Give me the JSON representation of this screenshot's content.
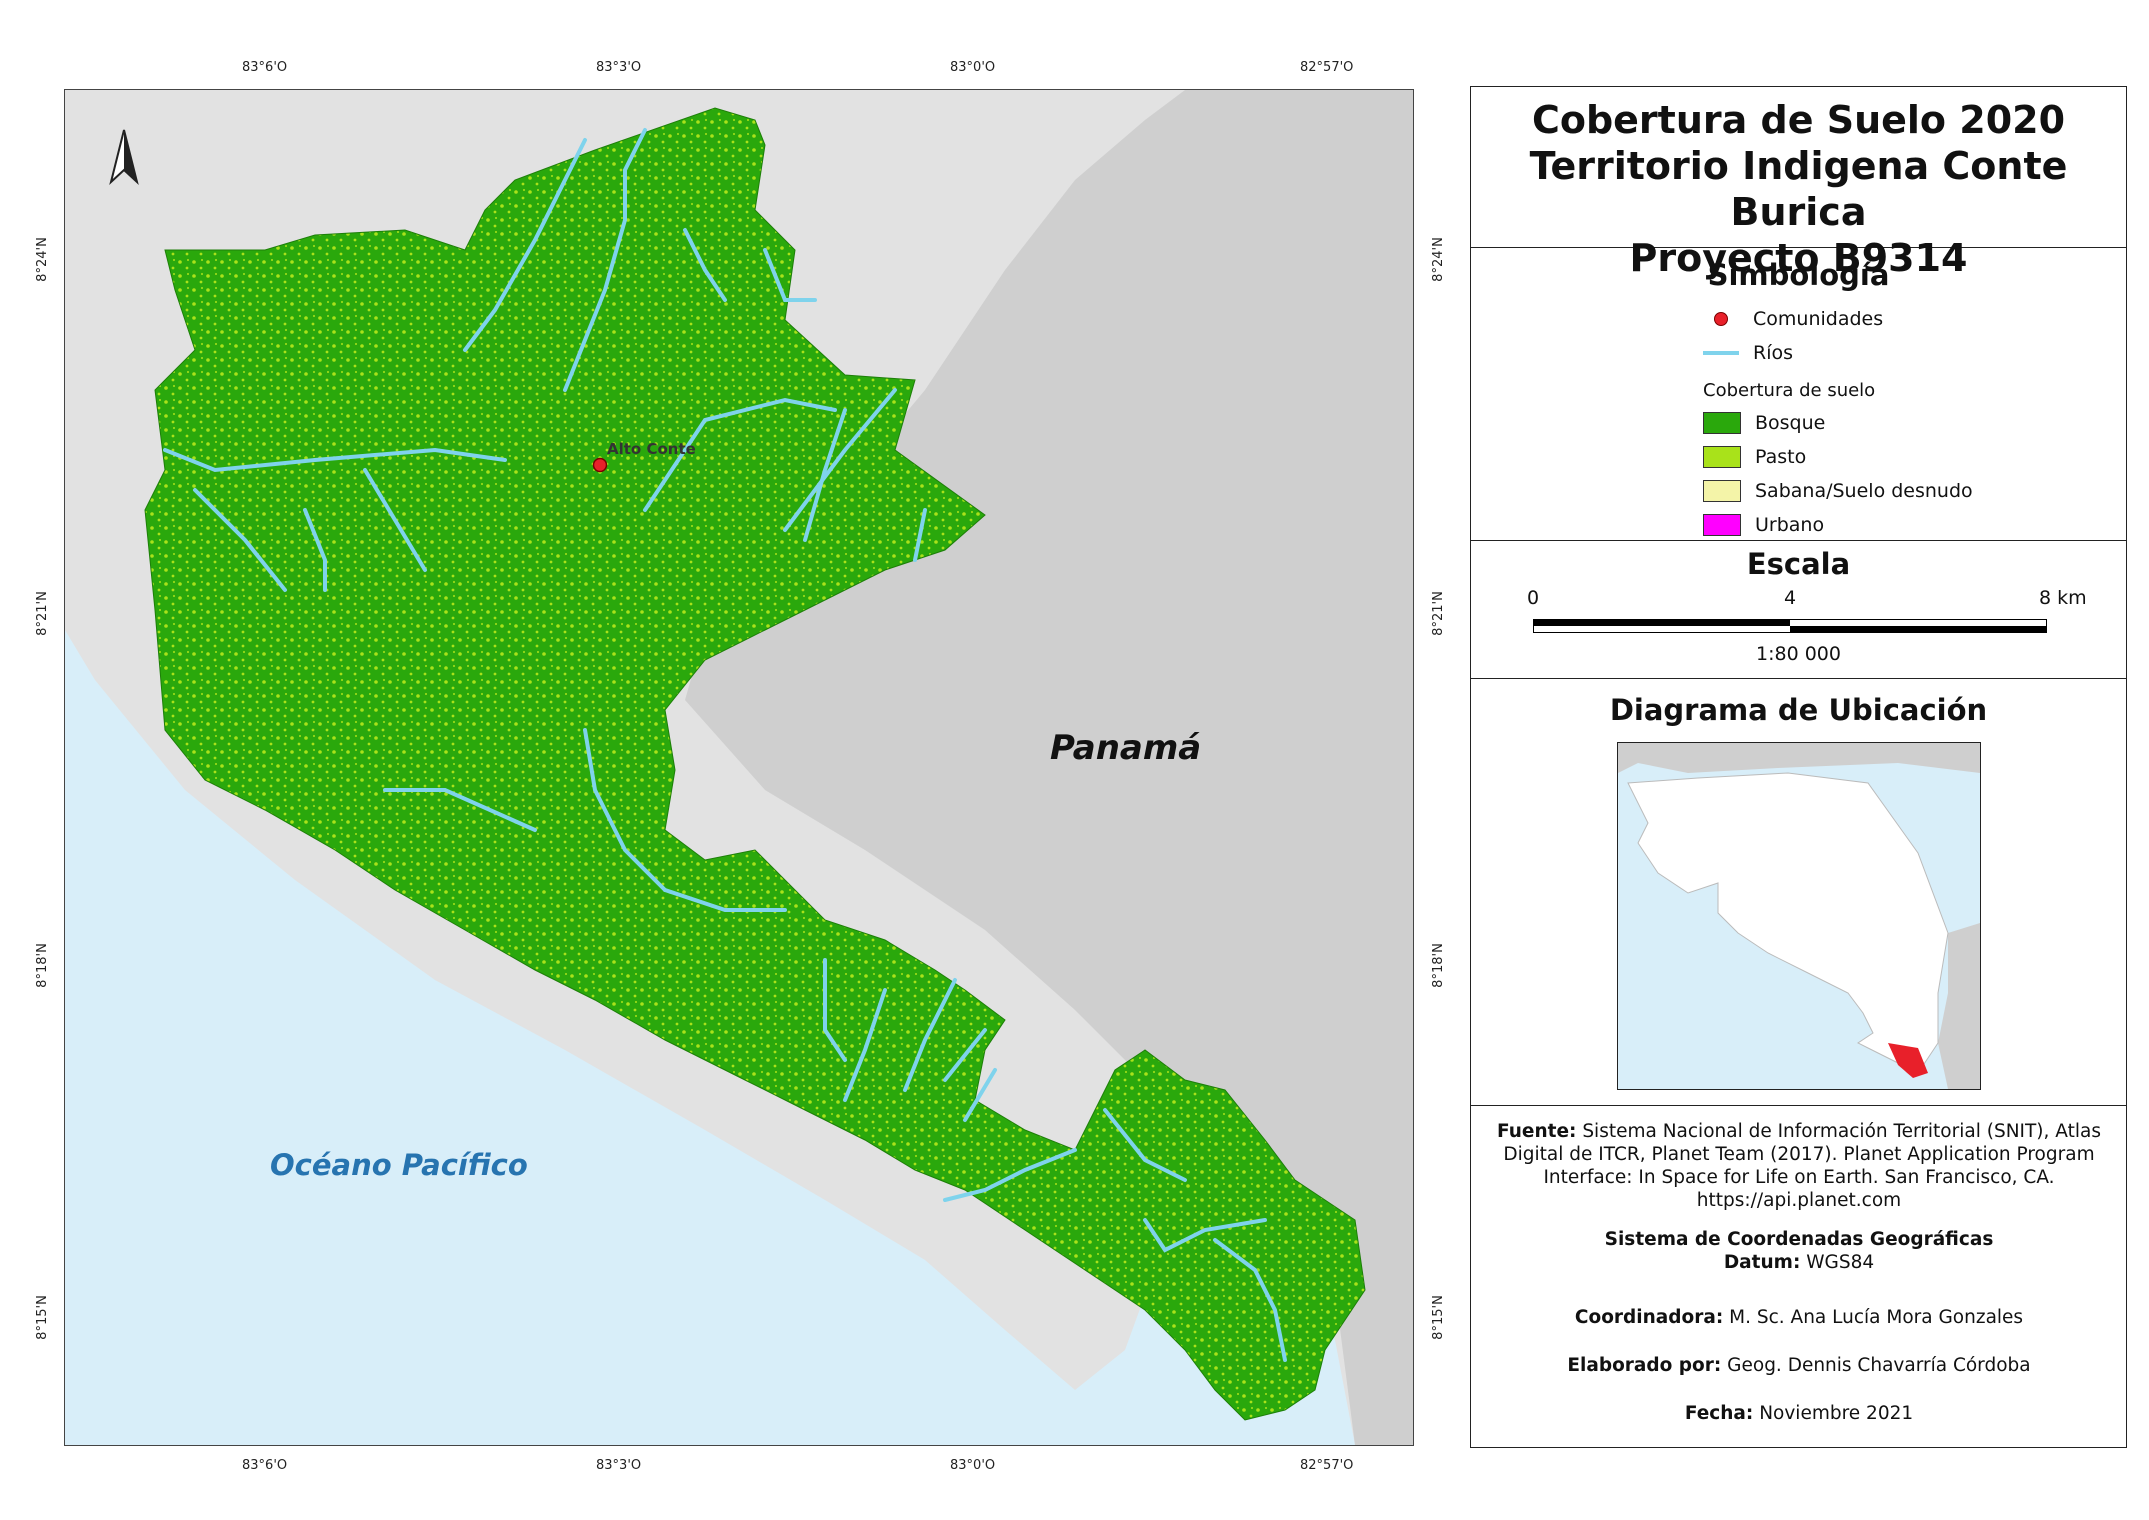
{
  "map": {
    "coord_labels": {
      "top": [
        "83°6'O",
        "83°3'O",
        "83°0'O",
        "82°57'O"
      ],
      "bottom": [
        "83°6'O",
        "83°3'O",
        "83°0'O",
        "82°57'O"
      ],
      "left": [
        "8°24'N",
        "8°21'N",
        "8°18'N",
        "8°15'N"
      ],
      "right": [
        "8°24'N",
        "8°21'N",
        "8°18'N",
        "8°15'N"
      ]
    },
    "country_label": "Panamá",
    "ocean_label": "Océano Pacífico",
    "community_label": "Alto Conte",
    "north_arrow": "north-arrow-icon",
    "colors": {
      "ocean": "#d8eef9",
      "land": "#e2e2e2",
      "forest": "#2aa80c",
      "pasture": "#a9e21a",
      "savanna": "#f4f4a8",
      "urban": "#ff00ff",
      "river": "#7fd3ec",
      "community": "#e8202a"
    }
  },
  "panel": {
    "title_lines": [
      "Cobertura de Suelo 2020",
      "Territorio Indigena Conte Burica",
      "Proyecto B9314"
    ],
    "legend": {
      "heading": "Simbología",
      "communities": "Comunidades",
      "rivers": "Ríos",
      "cover_heading": "Cobertura de suelo",
      "items": [
        "Bosque",
        "Pasto",
        "Sabana/Suelo desnudo",
        "Urbano"
      ]
    },
    "scale": {
      "heading": "Escala",
      "tick_0": "0",
      "tick_4": "4",
      "tick_8": "8 km",
      "ratio": "1:80 000"
    },
    "location": {
      "heading": "Diagrama de Ubicación"
    },
    "credits": {
      "source_label": "Fuente:",
      "source_text": "Sistema Nacional de Información Territorial (SNIT), Atlas Digital de ITCR, Planet Team (2017). Planet Application Program Interface: In Space for Life on Earth. San Francisco, CA. https://api.planet.com",
      "crs_label": "Sistema de Coordenadas Geográficas",
      "datum_label": "Datum:",
      "datum_value": "WGS84",
      "coordinator_label": "Coordinadora:",
      "coordinator_value": "M. Sc. Ana Lucía Mora Gonzales",
      "author_label": "Elaborado por:",
      "author_value": "Geog. Dennis Chavarría Córdoba",
      "date_label": "Fecha:",
      "date_value": "Noviembre 2021"
    }
  }
}
